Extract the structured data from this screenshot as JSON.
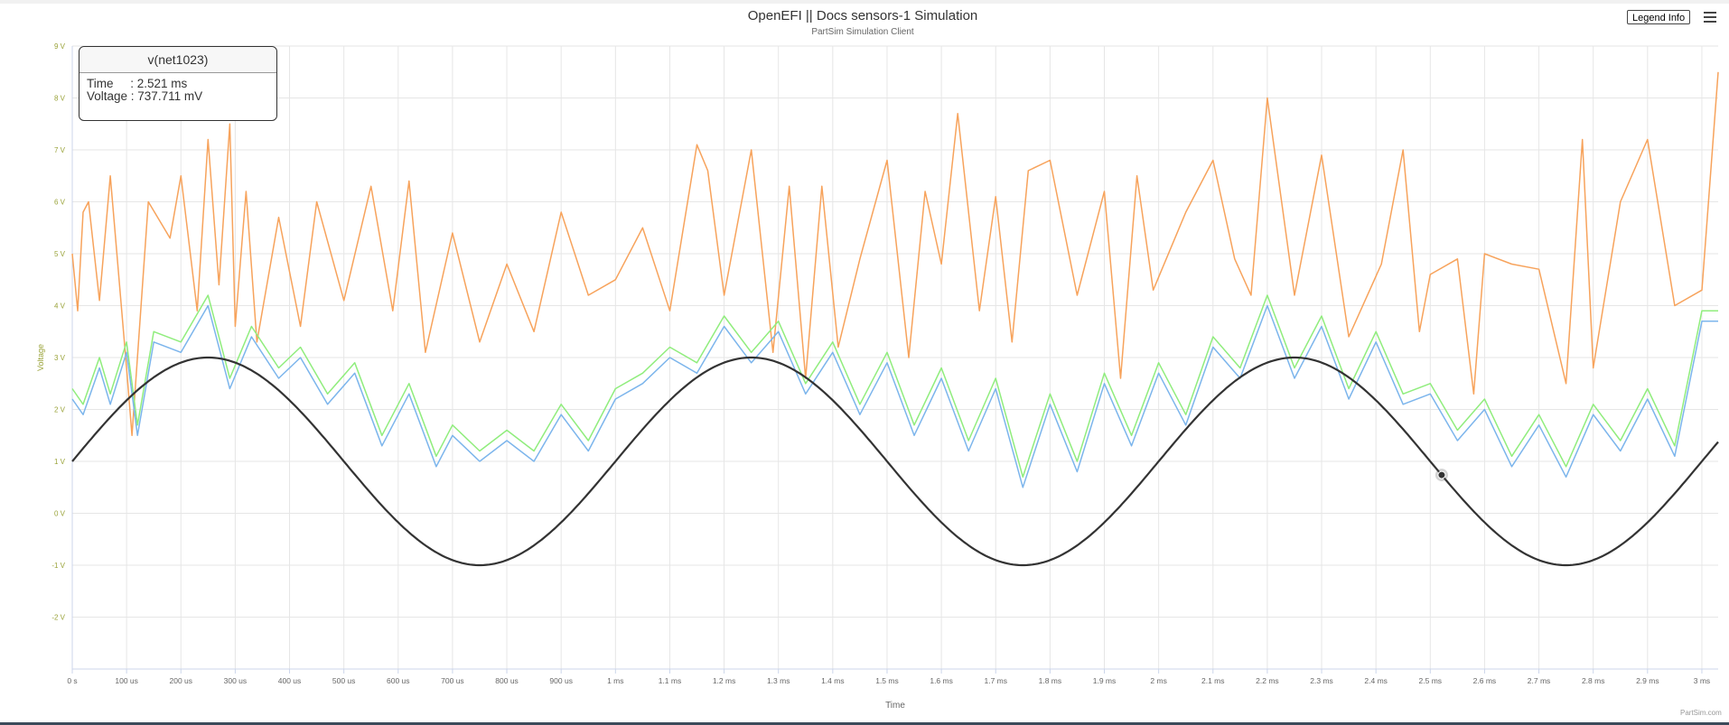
{
  "chart_data": {
    "type": "line",
    "title": "OpenEFI || Docs sensors-1 Simulation",
    "subtitle": "PartSim Simulation Client",
    "xlabel": "Time",
    "ylabel": "Voltage",
    "x_unit": "ms",
    "xlim": [
      0,
      3.03
    ],
    "ylim": [
      -3,
      9
    ],
    "grid": true,
    "legend": "hidden",
    "x_ticks": [
      "0 s",
      "100 us",
      "200 us",
      "300 us",
      "400 us",
      "500 us",
      "600 us",
      "700 us",
      "800 us",
      "900 us",
      "1 ms",
      "1.1 ms",
      "1.2 ms",
      "1.3 ms",
      "1.4 ms",
      "1.5 ms",
      "1.6 ms",
      "1.7 ms",
      "1.8 ms",
      "1.9 ms",
      "2 ms",
      "2.1 ms",
      "2.2 ms",
      "2.3 ms",
      "2.4 ms",
      "2.5 ms",
      "2.6 ms",
      "2.7 ms",
      "2.8 ms",
      "2.9 ms",
      "3 ms"
    ],
    "y_ticks": [
      "-2 V",
      "-1 V",
      "0 V",
      "1 V",
      "2 V",
      "3 V",
      "4 V",
      "5 V",
      "6 V",
      "7 V",
      "8 V",
      "9 V"
    ],
    "series": [
      {
        "color": "#333333",
        "kind": "sine",
        "offset": 1,
        "amplitude": 2,
        "frequency_khz": 1,
        "x": [
          0,
          0.25,
          0.5,
          0.75,
          1.0,
          1.25,
          1.5,
          1.75,
          2.0,
          2.25,
          2.5,
          2.75,
          3.0
        ],
        "y": [
          1,
          3,
          1,
          -1,
          1,
          3,
          1,
          -1,
          1,
          3,
          1,
          -1,
          1
        ]
      },
      {
        "color": "#f7a35c",
        "x": [
          0,
          0.01,
          0.02,
          0.03,
          0.05,
          0.07,
          0.1,
          0.11,
          0.14,
          0.18,
          0.2,
          0.23,
          0.25,
          0.27,
          0.29,
          0.3,
          0.32,
          0.34,
          0.38,
          0.42,
          0.45,
          0.5,
          0.55,
          0.59,
          0.62,
          0.65,
          0.7,
          0.75,
          0.8,
          0.85,
          0.9,
          0.95,
          1.0,
          1.05,
          1.1,
          1.15,
          1.17,
          1.2,
          1.25,
          1.29,
          1.32,
          1.35,
          1.38,
          1.41,
          1.45,
          1.5,
          1.54,
          1.57,
          1.6,
          1.63,
          1.67,
          1.7,
          1.73,
          1.76,
          1.8,
          1.85,
          1.9,
          1.93,
          1.96,
          1.99,
          2.05,
          2.1,
          2.14,
          2.17,
          2.2,
          2.25,
          2.3,
          2.35,
          2.41,
          2.45,
          2.48,
          2.5,
          2.55,
          2.58,
          2.6,
          2.65,
          2.7,
          2.75,
          2.78,
          2.8,
          2.85,
          2.9,
          2.95,
          3.0,
          3.03
        ],
        "y": [
          5,
          3.9,
          5.8,
          6,
          4.1,
          6.5,
          2.8,
          1.5,
          6,
          5.3,
          6.5,
          3.9,
          7.2,
          4.4,
          7.5,
          3.6,
          6.2,
          3.3,
          5.7,
          3.6,
          6,
          4.1,
          6.3,
          3.9,
          6.4,
          3.1,
          5.4,
          3.3,
          4.8,
          3.5,
          5.8,
          4.2,
          4.5,
          5.5,
          3.9,
          7.1,
          6.6,
          4.2,
          7,
          3.1,
          6.3,
          2.6,
          6.3,
          3.2,
          4.9,
          6.8,
          3,
          6.2,
          4.8,
          7.7,
          3.9,
          6.1,
          3.3,
          6.6,
          6.8,
          4.2,
          6.2,
          2.6,
          6.5,
          4.3,
          5.8,
          6.8,
          4.9,
          4.2,
          8,
          4.2,
          6.9,
          3.4,
          4.8,
          7,
          3.5,
          4.6,
          4.9,
          2.3,
          5,
          4.8,
          4.7,
          2.5,
          7.2,
          2.8,
          6,
          7.2,
          4,
          4.3,
          8.5
        ]
      },
      {
        "color": "#90ed7d",
        "x": [
          0,
          0.02,
          0.05,
          0.07,
          0.1,
          0.12,
          0.15,
          0.2,
          0.25,
          0.29,
          0.33,
          0.38,
          0.42,
          0.47,
          0.52,
          0.57,
          0.62,
          0.67,
          0.7,
          0.75,
          0.8,
          0.85,
          0.9,
          0.95,
          1.0,
          1.05,
          1.1,
          1.15,
          1.2,
          1.25,
          1.3,
          1.35,
          1.4,
          1.45,
          1.5,
          1.55,
          1.6,
          1.65,
          1.7,
          1.75,
          1.8,
          1.85,
          1.9,
          1.95,
          2.0,
          2.05,
          2.1,
          2.15,
          2.2,
          2.25,
          2.3,
          2.35,
          2.4,
          2.45,
          2.5,
          2.55,
          2.6,
          2.65,
          2.7,
          2.75,
          2.8,
          2.85,
          2.9,
          2.95,
          3.0,
          3.03
        ],
        "y": [
          2.4,
          2.1,
          3,
          2.3,
          3.3,
          1.7,
          3.5,
          3.3,
          4.2,
          2.6,
          3.6,
          2.8,
          3.2,
          2.3,
          2.9,
          1.5,
          2.5,
          1.1,
          1.7,
          1.2,
          1.6,
          1.2,
          2.1,
          1.4,
          2.4,
          2.7,
          3.2,
          2.9,
          3.8,
          3.1,
          3.7,
          2.5,
          3.3,
          2.1,
          3.1,
          1.7,
          2.8,
          1.4,
          2.6,
          0.7,
          2.3,
          1,
          2.7,
          1.5,
          2.9,
          1.9,
          3.4,
          2.8,
          4.2,
          2.8,
          3.8,
          2.4,
          3.5,
          2.3,
          2.5,
          1.6,
          2.2,
          1.1,
          1.9,
          0.9,
          2.1,
          1.4,
          2.4,
          1.3,
          3.9,
          3.9
        ]
      },
      {
        "color": "#7cb5ec",
        "x": [
          0,
          0.02,
          0.05,
          0.07,
          0.1,
          0.12,
          0.15,
          0.2,
          0.25,
          0.29,
          0.33,
          0.38,
          0.42,
          0.47,
          0.52,
          0.57,
          0.62,
          0.67,
          0.7,
          0.75,
          0.8,
          0.85,
          0.9,
          0.95,
          1.0,
          1.05,
          1.1,
          1.15,
          1.2,
          1.25,
          1.3,
          1.35,
          1.4,
          1.45,
          1.5,
          1.55,
          1.6,
          1.65,
          1.7,
          1.75,
          1.8,
          1.85,
          1.9,
          1.95,
          2.0,
          2.05,
          2.1,
          2.15,
          2.2,
          2.25,
          2.3,
          2.35,
          2.4,
          2.45,
          2.5,
          2.55,
          2.6,
          2.65,
          2.7,
          2.75,
          2.8,
          2.85,
          2.9,
          2.95,
          3.0,
          3.03
        ],
        "y": [
          2.2,
          1.9,
          2.8,
          2.1,
          3.1,
          1.5,
          3.3,
          3.1,
          4,
          2.4,
          3.4,
          2.6,
          3,
          2.1,
          2.7,
          1.3,
          2.3,
          0.9,
          1.5,
          1,
          1.4,
          1,
          1.9,
          1.2,
          2.2,
          2.5,
          3,
          2.7,
          3.6,
          2.9,
          3.5,
          2.3,
          3.1,
          1.9,
          2.9,
          1.5,
          2.6,
          1.2,
          2.4,
          0.5,
          2.1,
          0.8,
          2.5,
          1.3,
          2.7,
          1.7,
          3.2,
          2.6,
          4,
          2.6,
          3.6,
          2.2,
          3.3,
          2.1,
          2.3,
          1.4,
          2,
          0.9,
          1.7,
          0.7,
          1.9,
          1.2,
          2.2,
          1.1,
          3.7,
          3.7
        ]
      }
    ],
    "hover_marker": {
      "x": 2.521,
      "y": 0.737711
    }
  },
  "tooltip": {
    "header": "v(net1023)",
    "time_row": "Time     : 2.521 ms",
    "voltage_row": "Voltage : 737.711 mV"
  },
  "buttons": {
    "legend_info": "Legend Info"
  },
  "credits": "PartSim.com"
}
